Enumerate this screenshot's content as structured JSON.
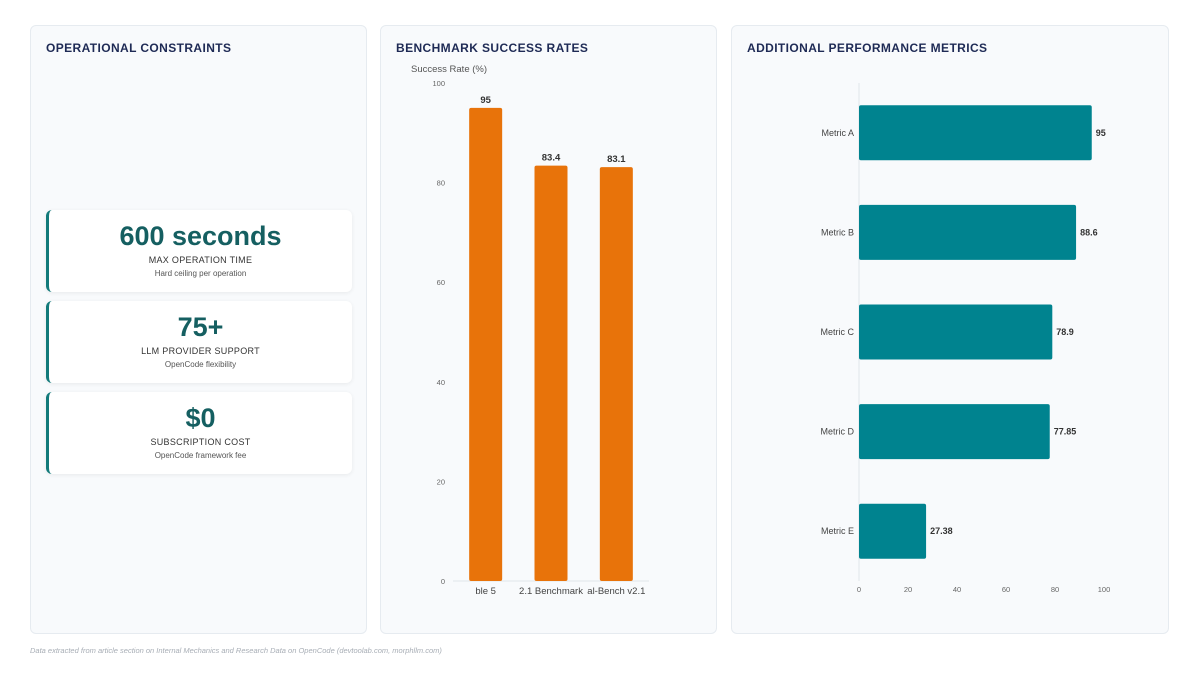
{
  "panels": {
    "constraints": {
      "title": "OPERATIONAL CONSTRAINTS",
      "cards": [
        {
          "value": "600 seconds",
          "label": "MAX OPERATION TIME",
          "sub": "Hard ceiling per operation"
        },
        {
          "value": "75+",
          "label": "LLM PROVIDER SUPPORT",
          "sub": "OpenCode flexibility"
        },
        {
          "value": "$0",
          "label": "SUBSCRIPTION COST",
          "sub": "OpenCode framework fee"
        }
      ]
    },
    "benchmark": {
      "title": "BENCHMARK SUCCESS RATES"
    },
    "metrics": {
      "title": "ADDITIONAL PERFORMANCE METRICS"
    }
  },
  "colors": {
    "bar_orange": "#e8730a",
    "bar_teal": "#00838f",
    "title": "#1e2a55",
    "kpi_value": "#155f61"
  },
  "chart_data": [
    {
      "type": "bar",
      "orientation": "vertical",
      "ylabel": "Success Rate (%)",
      "categories": [
        "ble 5",
        "2.1 Benchmark",
        "al-Bench v2.1"
      ],
      "values": [
        95,
        83.4,
        83.1
      ],
      "value_labels": [
        "95",
        "83.4",
        "83.1"
      ],
      "ylim": [
        0,
        100
      ],
      "yticks": [
        "0",
        "20",
        "40",
        "60",
        "80",
        "100"
      ],
      "grid": false
    },
    {
      "type": "bar",
      "orientation": "horizontal",
      "categories": [
        "Metric A",
        "Metric B",
        "Metric C",
        "Metric D",
        "Metric E"
      ],
      "values": [
        95,
        88.6,
        78.9,
        77.85,
        27.38
      ],
      "value_labels": [
        "95",
        "88.6",
        "78.9",
        "77.85",
        "27.38"
      ],
      "xlim": [
        0,
        100
      ],
      "xticks": [
        "0",
        "20",
        "40",
        "60",
        "80",
        "100"
      ],
      "grid": false
    }
  ],
  "footer": "Data extracted from article section on Internal Mechanics and Research Data on OpenCode (devtoolab.com, morphllm.com)"
}
